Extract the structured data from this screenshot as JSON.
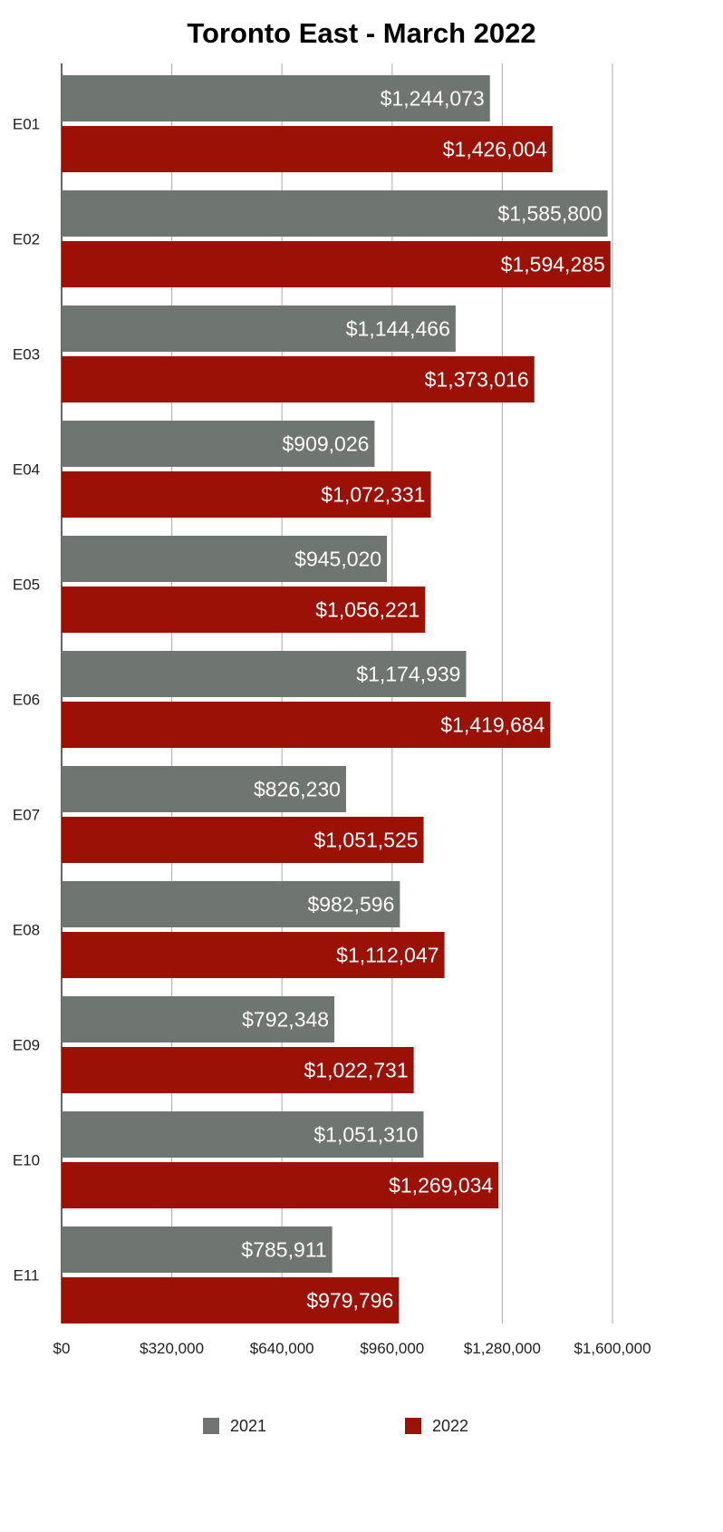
{
  "chart_data": {
    "type": "bar",
    "orientation": "horizontal",
    "title": "Toronto East - March 2022",
    "xlabel": "",
    "ylabel": "",
    "categories": [
      "E01",
      "E02",
      "E03",
      "E04",
      "E05",
      "E06",
      "E07",
      "E08",
      "E09",
      "E10",
      "E11"
    ],
    "series": [
      {
        "name": "2021",
        "color": "#6f7570",
        "values": [
          1244073,
          1585800,
          1144466,
          909026,
          945020,
          1174939,
          826230,
          982596,
          792348,
          1051310,
          785911
        ],
        "labels": [
          "$1,244,073",
          "$1,585,800",
          "$1,144,466",
          "$909,026",
          "$945,020",
          "$1,174,939",
          "$826,230",
          "$982,596",
          "$792,348",
          "$1,051,310",
          "$785,911"
        ]
      },
      {
        "name": "2022",
        "color": "#9b1106",
        "values": [
          1426004,
          1594285,
          1373016,
          1072331,
          1056221,
          1419684,
          1051525,
          1112047,
          1022731,
          1269034,
          979796
        ],
        "labels": [
          "$1,426,004",
          "$1,594,285",
          "$1,373,016",
          "$1,072,331",
          "$1,056,221",
          "$1,419,684",
          "$1,051,525",
          "$1,112,047",
          "$1,022,731",
          "$1,269,034",
          "$979,796"
        ]
      }
    ],
    "xlim": [
      0,
      1600000
    ],
    "x_ticks": [
      0,
      320000,
      640000,
      960000,
      1280000,
      1600000
    ],
    "x_tick_labels": [
      "$0",
      "$320,000",
      "$640,000",
      "$960,000",
      "$1,280,000",
      "$1,600,000"
    ],
    "grid": true,
    "gridline_color": "#b7b7b7",
    "legend_position": "bottom"
  }
}
